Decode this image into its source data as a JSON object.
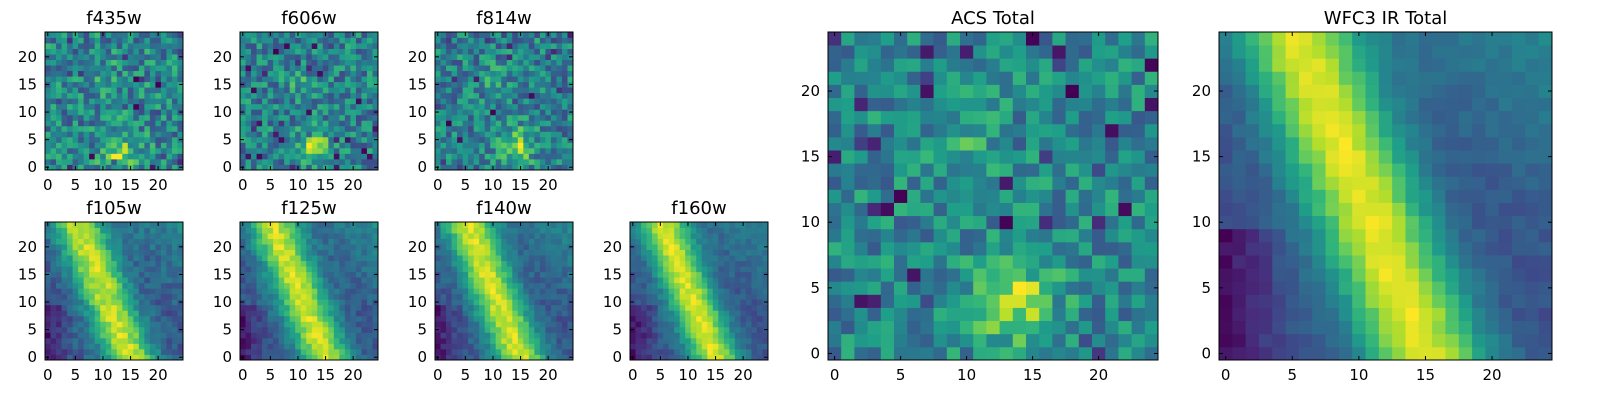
{
  "chart_data": [
    {
      "type": "heatmap",
      "title": "f435w",
      "xticks": [
        0,
        5,
        10,
        15,
        20
      ],
      "yticks": [
        0,
        5,
        10,
        15,
        20
      ],
      "xlim": [
        0,
        24
      ],
      "ylim": [
        0,
        24
      ],
      "colormap": "viridis",
      "pattern": "noisy",
      "source_spot": [
        13,
        3,
        2.2
      ],
      "source_strength": 0.55,
      "noise": 0.32,
      "seed": 11
    },
    {
      "type": "heatmap",
      "title": "f606w",
      "xticks": [
        0,
        5,
        10,
        15,
        20
      ],
      "yticks": [
        0,
        5,
        10,
        15,
        20
      ],
      "xlim": [
        0,
        24
      ],
      "ylim": [
        0,
        24
      ],
      "colormap": "viridis",
      "pattern": "noisy",
      "source_spot": [
        13,
        4,
        2.0
      ],
      "source_strength": 0.6,
      "noise": 0.3,
      "seed": 23
    },
    {
      "type": "heatmap",
      "title": "f814w",
      "xticks": [
        0,
        5,
        10,
        15,
        20
      ],
      "yticks": [
        0,
        5,
        10,
        15,
        20
      ],
      "xlim": [
        0,
        24
      ],
      "ylim": [
        0,
        24
      ],
      "colormap": "viridis",
      "pattern": "noisy",
      "source_spot": [
        14,
        4,
        2.2
      ],
      "source_strength": 0.6,
      "noise": 0.3,
      "seed": 37
    },
    {
      "type": "heatmap",
      "title": "f105w",
      "xticks": [
        0,
        5,
        10,
        15,
        20
      ],
      "yticks": [
        0,
        5,
        10,
        15,
        20
      ],
      "xlim": [
        0,
        24
      ],
      "ylim": [
        0,
        24
      ],
      "colormap": "viridis",
      "pattern": "ridge",
      "noise": 0.12,
      "seed": 41
    },
    {
      "type": "heatmap",
      "title": "f125w",
      "xticks": [
        0,
        5,
        10,
        15,
        20
      ],
      "yticks": [
        0,
        5,
        10,
        15,
        20
      ],
      "xlim": [
        0,
        24
      ],
      "ylim": [
        0,
        24
      ],
      "colormap": "viridis",
      "pattern": "ridge",
      "noise": 0.1,
      "seed": 53
    },
    {
      "type": "heatmap",
      "title": "f140w",
      "xticks": [
        0,
        5,
        10,
        15,
        20
      ],
      "yticks": [
        0,
        5,
        10,
        15,
        20
      ],
      "xlim": [
        0,
        24
      ],
      "ylim": [
        0,
        24
      ],
      "colormap": "viridis",
      "pattern": "ridge",
      "noise": 0.1,
      "seed": 67
    },
    {
      "type": "heatmap",
      "title": "f160w",
      "xticks": [
        0,
        5,
        10,
        15,
        20
      ],
      "yticks": [
        0,
        5,
        10,
        15,
        20
      ],
      "xlim": [
        0,
        24
      ],
      "ylim": [
        0,
        24
      ],
      "colormap": "viridis",
      "pattern": "ridge",
      "noise": 0.08,
      "seed": 79
    },
    {
      "type": "heatmap",
      "title": "ACS Total",
      "xticks": [
        0,
        5,
        10,
        15,
        20
      ],
      "yticks": [
        0,
        5,
        10,
        15,
        20
      ],
      "xlim": [
        0,
        24
      ],
      "ylim": [
        0,
        24
      ],
      "colormap": "viridis",
      "pattern": "noisy",
      "source_spot": [
        13.5,
        4,
        2.2
      ],
      "source_strength": 0.55,
      "noise": 0.22,
      "seed": 97
    },
    {
      "type": "heatmap",
      "title": "WFC3 IR Total",
      "xticks": [
        0,
        5,
        10,
        15,
        20
      ],
      "yticks": [
        0,
        5,
        10,
        15,
        20
      ],
      "xlim": [
        0,
        24
      ],
      "ylim": [
        0,
        24
      ],
      "colormap": "viridis",
      "pattern": "ridge",
      "noise": 0.05,
      "seed": 101
    }
  ]
}
